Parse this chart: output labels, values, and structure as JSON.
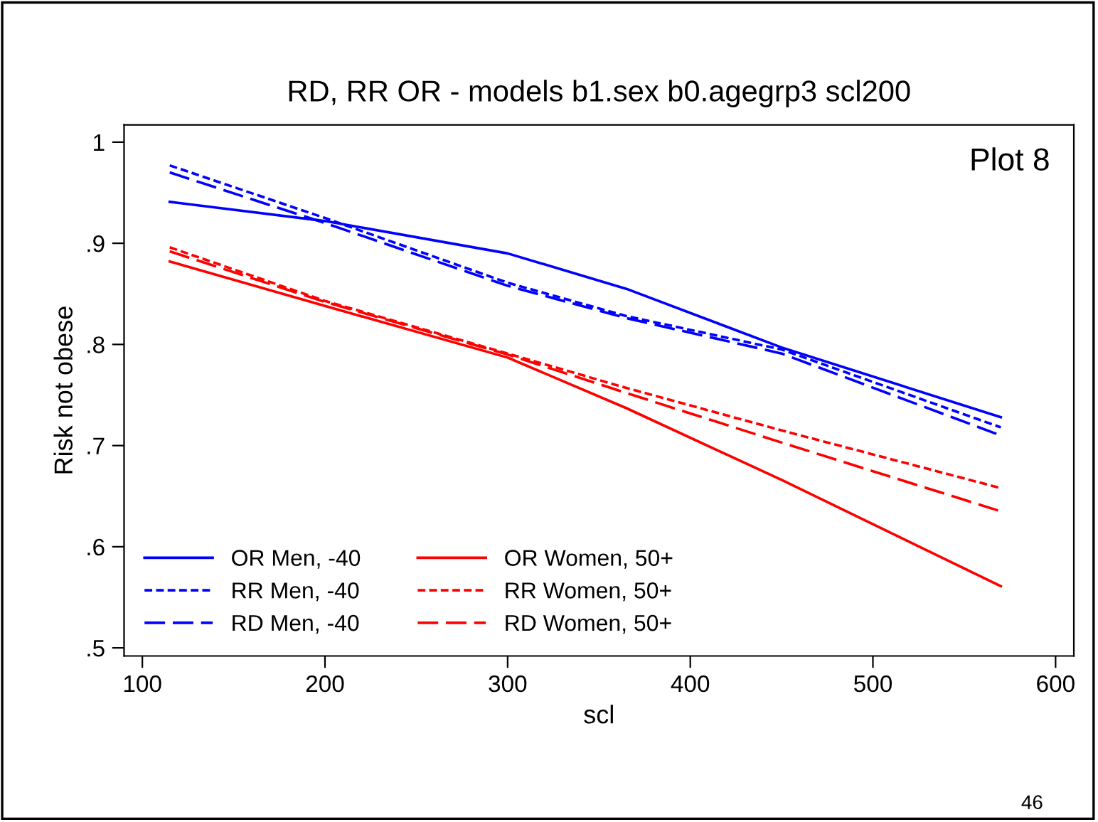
{
  "chart_data": {
    "type": "line",
    "title": "RD, RR OR - models b1.sex b0.agegrp3 scl200",
    "xlabel": "scl",
    "ylabel": "Risk not obese",
    "xlim": [
      90,
      610
    ],
    "xticks": [
      100,
      200,
      300,
      400,
      500,
      600
    ],
    "ylim": [
      0.492,
      1.017
    ],
    "yticks": [
      {
        "value": 0.5,
        "label": ".5"
      },
      {
        "value": 0.6,
        "label": ".6"
      },
      {
        "value": 0.7,
        "label": ".7"
      },
      {
        "value": 0.8,
        "label": ".8"
      },
      {
        "value": 0.9,
        "label": ".9"
      },
      1
    ],
    "grid": false,
    "legend": "bottom left",
    "marker": "none",
    "annotations": [
      "Plot 8",
      "46"
    ],
    "series": [
      {
        "name": "OR Men, -40",
        "color": "#0000ff",
        "line_style": "solid",
        "x": [
          115,
          200,
          300,
          365,
          450,
          570
        ],
        "values": [
          0.941,
          0.922,
          0.89,
          0.855,
          0.797,
          0.728
        ]
      },
      {
        "name": "RR Men, -40",
        "color": "#0000ff",
        "line_style": "dotted",
        "x": [
          115,
          200,
          300,
          365,
          450,
          570
        ],
        "values": [
          0.977,
          0.925,
          0.861,
          0.828,
          0.795,
          0.718
        ]
      },
      {
        "name": "RD Men, -40",
        "color": "#0000ff",
        "line_style": "dashed",
        "x": [
          115,
          200,
          300,
          365,
          450,
          570
        ],
        "values": [
          0.97,
          0.92,
          0.858,
          0.826,
          0.791,
          0.71
        ]
      },
      {
        "name": "OR Women, 50+",
        "color": "#ff0000",
        "line_style": "solid",
        "x": [
          115,
          200,
          300,
          365,
          450,
          570
        ],
        "values": [
          0.882,
          0.838,
          0.787,
          0.737,
          0.666,
          0.561
        ]
      },
      {
        "name": "RR Women, 50+",
        "color": "#ff0000",
        "line_style": "dotted",
        "x": [
          115,
          200,
          300,
          365,
          450,
          570
        ],
        "values": [
          0.896,
          0.843,
          0.791,
          0.757,
          0.715,
          0.658
        ]
      },
      {
        "name": "RD Women, 50+",
        "color": "#ff0000",
        "line_style": "dashed",
        "x": [
          115,
          200,
          300,
          365,
          450,
          570
        ],
        "values": [
          0.892,
          0.842,
          0.79,
          0.752,
          0.703,
          0.635
        ]
      }
    ]
  }
}
